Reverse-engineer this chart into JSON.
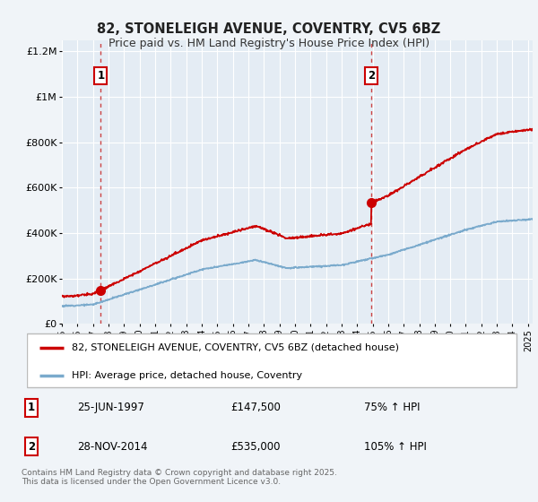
{
  "title": "82, STONELEIGH AVENUE, COVENTRY, CV5 6BZ",
  "subtitle": "Price paid vs. HM Land Registry's House Price Index (HPI)",
  "property_label": "82, STONELEIGH AVENUE, COVENTRY, CV5 6BZ (detached house)",
  "hpi_label": "HPI: Average price, detached house, Coventry",
  "transaction1": {
    "num": 1,
    "date": "25-JUN-1997",
    "price": 147500,
    "pct": "75% ↑ HPI"
  },
  "transaction2": {
    "num": 2,
    "date": "28-NOV-2014",
    "price": 535000,
    "pct": "105% ↑ HPI"
  },
  "red_line_color": "#cc0000",
  "blue_line_color": "#7aaacc",
  "dashed_line_color": "#cc4444",
  "dot_color": "#cc0000",
  "background_color": "#f0f4f8",
  "plot_bg_color": "#e4ecf4",
  "grid_color": "#ffffff",
  "ylim": [
    0,
    1250000
  ],
  "yticks": [
    0,
    200000,
    400000,
    600000,
    800000,
    1000000,
    1200000
  ],
  "ytick_labels": [
    "£0",
    "£200K",
    "£400K",
    "£600K",
    "£800K",
    "£1M",
    "£1.2M"
  ],
  "footer": "Contains HM Land Registry data © Crown copyright and database right 2025.\nThis data is licensed under the Open Government Licence v3.0.",
  "transaction1_year": 1997.5,
  "transaction2_year": 2014.92,
  "transaction1_price": 147500,
  "transaction2_price": 535000,
  "hpi_at_t1": 84000,
  "hpi_at_t2": 261000
}
